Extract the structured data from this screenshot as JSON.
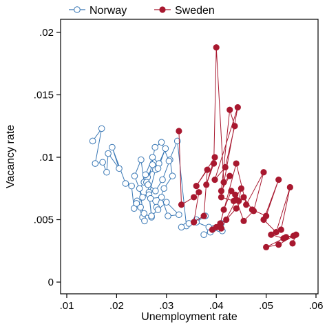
{
  "chart_data": {
    "type": "line",
    "xlabel": "Unemployment rate",
    "ylabel": "Vacancy rate",
    "xlim": [
      0.01,
      0.06
    ],
    "ylim": [
      0,
      0.02
    ],
    "x_ticks": [
      0.01,
      0.02,
      0.03,
      0.04,
      0.05,
      0.06
    ],
    "x_tick_labels": [
      ".01",
      ".02",
      ".03",
      ".04",
      ".05",
      ".06"
    ],
    "y_ticks": [
      0,
      0.005,
      0.01,
      0.015,
      0.02
    ],
    "y_tick_labels": [
      "0",
      ".005",
      ".01",
      ".015",
      ".02"
    ],
    "grid": false,
    "legend_position": "top",
    "colors": {
      "Norway": "#3a78b5",
      "Sweden": "#a8182f"
    },
    "series": [
      {
        "name": "Norway",
        "marker": "hollow-circle",
        "x": [
          0.0152,
          0.017,
          0.0157,
          0.0172,
          0.018,
          0.0183,
          0.0205,
          0.0191,
          0.0218,
          0.023,
          0.0235,
          0.0248,
          0.0241,
          0.0252,
          0.0256,
          0.0246,
          0.0262,
          0.0255,
          0.0249,
          0.0236,
          0.0252,
          0.0265,
          0.024,
          0.0255,
          0.027,
          0.0265,
          0.0278,
          0.0258,
          0.0272,
          0.0285,
          0.0298,
          0.0283,
          0.0272,
          0.026,
          0.0278,
          0.0292,
          0.0307,
          0.0312,
          0.0295,
          0.028,
          0.0268,
          0.029,
          0.0303,
          0.0325,
          0.03,
          0.0283,
          0.027,
          0.0263,
          0.0277,
          0.029,
          0.0305,
          0.0322,
          0.034,
          0.033,
          0.0345,
          0.036,
          0.0378,
          0.036,
          0.0385,
          0.0395,
          0.0375,
          0.041,
          0.0388,
          0.0405,
          0.0412
        ],
        "y": [
          0.0113,
          0.0123,
          0.0095,
          0.0096,
          0.0088,
          0.0103,
          0.0091,
          0.0108,
          0.0079,
          0.0077,
          0.0059,
          0.006,
          0.0065,
          0.0052,
          0.0049,
          0.0075,
          0.0084,
          0.008,
          0.0098,
          0.0085,
          0.0068,
          0.0072,
          0.0063,
          0.0055,
          0.0052,
          0.007,
          0.009,
          0.0086,
          0.01,
          0.0095,
          0.0107,
          0.0091,
          0.0094,
          0.008,
          0.0073,
          0.0082,
          0.0098,
          0.0085,
          0.0075,
          0.006,
          0.0067,
          0.0068,
          0.0053,
          0.0054,
          0.0064,
          0.0058,
          0.0053,
          0.0078,
          0.0108,
          0.0112,
          0.0097,
          0.0113,
          0.0045,
          0.0044,
          0.0047,
          0.005,
          0.0053,
          0.0048,
          0.0044,
          0.0043,
          0.0038,
          0.0047,
          0.004,
          0.0043,
          0.0041
        ]
      },
      {
        "name": "Sweden",
        "marker": "filled-circle",
        "x": [
          0.0325,
          0.033,
          0.0355,
          0.0365,
          0.0355,
          0.0375,
          0.0382,
          0.036,
          0.0397,
          0.038,
          0.0395,
          0.04,
          0.0415,
          0.0427,
          0.041,
          0.0427,
          0.0437,
          0.0418,
          0.0397,
          0.0443,
          0.041,
          0.0435,
          0.045,
          0.0445,
          0.0438,
          0.043,
          0.0415,
          0.0408,
          0.044,
          0.046,
          0.0495,
          0.0475,
          0.0455,
          0.044,
          0.041,
          0.0392,
          0.04,
          0.042,
          0.044,
          0.0455,
          0.0472,
          0.05,
          0.0525,
          0.0495,
          0.052,
          0.0548,
          0.053,
          0.051,
          0.0535,
          0.0555,
          0.0525,
          0.05,
          0.054,
          0.056,
          0.0553
        ],
        "y": [
          0.0121,
          0.0062,
          0.0068,
          0.0072,
          0.0048,
          0.0053,
          0.009,
          0.0077,
          0.01,
          0.0078,
          0.0095,
          0.0188,
          0.008,
          0.0085,
          0.0073,
          0.0138,
          0.0125,
          0.0092,
          0.0082,
          0.014,
          0.0068,
          0.0065,
          0.0075,
          0.0065,
          0.007,
          0.0073,
          0.0058,
          0.0047,
          0.0095,
          0.0062,
          0.0088,
          0.0057,
          0.0049,
          0.0066,
          0.0043,
          0.0042,
          0.0044,
          0.005,
          0.0059,
          0.0068,
          0.0058,
          0.0053,
          0.0082,
          0.005,
          0.004,
          0.0076,
          0.0042,
          0.0038,
          0.0035,
          0.0037,
          0.003,
          0.0028,
          0.0036,
          0.0038,
          0.0031
        ]
      }
    ]
  }
}
